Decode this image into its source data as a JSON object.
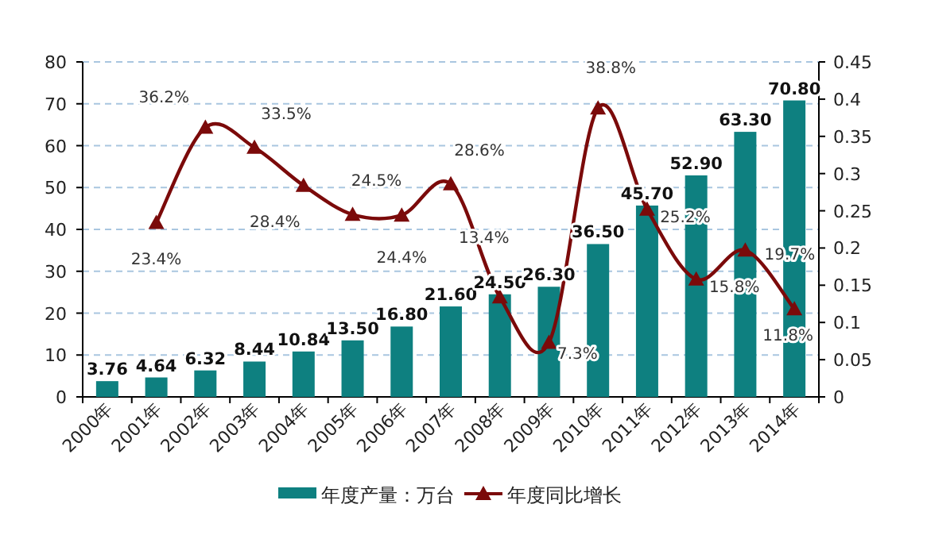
{
  "chart_data": {
    "type": "bar",
    "categories": [
      "2000年",
      "2001年",
      "2002年",
      "2003年",
      "2004年",
      "2005年",
      "2006年",
      "2007年",
      "2008年",
      "2009年",
      "2010年",
      "2011年",
      "2012年",
      "2013年",
      "2014年"
    ],
    "series": [
      {
        "name": "年度产量：万台",
        "color": "#0e8080",
        "values": [
          3.76,
          4.64,
          6.32,
          8.44,
          10.84,
          13.5,
          16.8,
          21.6,
          24.5,
          26.3,
          36.5,
          45.7,
          52.9,
          63.3,
          70.8
        ],
        "value_labels": [
          "3.76",
          "4.64",
          "6.32",
          "8.44",
          "10.84",
          "13.50",
          "16.80",
          "21.60",
          "24.50",
          "26.30",
          "36.50",
          "45.70",
          "52.90",
          "63.30",
          "70.80"
        ]
      },
      {
        "name": "年度同比增长",
        "type": "line",
        "axis": "y2",
        "color": "#7b0a0a",
        "marker": "triangle",
        "values": [
          null,
          0.234,
          0.362,
          0.335,
          0.284,
          0.245,
          0.244,
          0.286,
          0.134,
          0.073,
          0.388,
          0.252,
          0.158,
          0.197,
          0.118
        ],
        "value_labels": [
          null,
          "23.4%",
          "36.2%",
          "33.5%",
          "28.4%",
          "24.5%",
          "24.4%",
          "28.6%",
          "13.4%",
          "7.3%",
          "38.8%",
          "25.2%",
          "15.8%",
          "19.7%",
          "11.8%"
        ]
      }
    ],
    "ylim": [
      0,
      80
    ],
    "yticks": [
      0,
      10,
      20,
      30,
      40,
      50,
      60,
      70,
      80
    ],
    "y2lim": [
      0,
      0.45
    ],
    "y2ticks": [
      0,
      0.05,
      0.1,
      0.15,
      0.2,
      0.25,
      0.3,
      0.35,
      0.4,
      0.45
    ],
    "grid": "y",
    "legend": "bottom"
  }
}
